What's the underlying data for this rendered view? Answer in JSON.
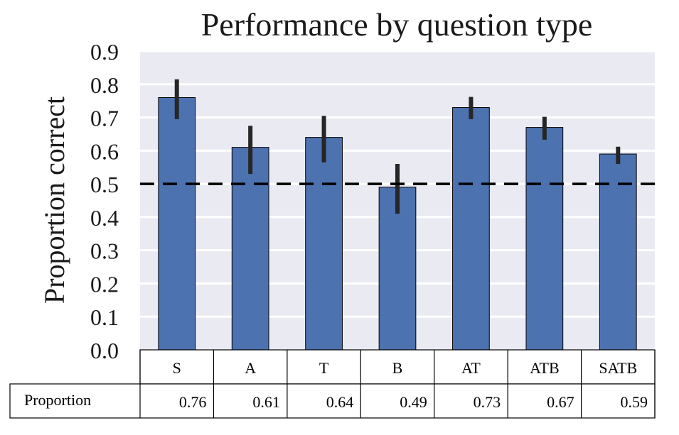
{
  "chart_data": {
    "type": "bar",
    "title": "Performance by question type",
    "ylabel": "Proportion correct",
    "xlabel": "",
    "categories": [
      "S",
      "A",
      "T",
      "B",
      "AT",
      "ATB",
      "SATB"
    ],
    "values": [
      0.76,
      0.61,
      0.64,
      0.49,
      0.73,
      0.67,
      0.59
    ],
    "error_low": [
      0.695,
      0.53,
      0.565,
      0.41,
      0.695,
      0.633,
      0.56
    ],
    "error_high": [
      0.815,
      0.675,
      0.705,
      0.56,
      0.762,
      0.702,
      0.612
    ],
    "ylim": [
      0,
      0.9
    ],
    "yticks": [
      "0.0",
      "0.1",
      "0.2",
      "0.3",
      "0.4",
      "0.5",
      "0.6",
      "0.7",
      "0.8",
      "0.9"
    ],
    "reference_line": 0.5,
    "grid": true,
    "colors": {
      "bar": "#4c72b0",
      "bar_edge": "#000000",
      "plot_bg": "#eaeaf2",
      "grid": "#ffffff",
      "error_bar": "#262626",
      "reference": "#000000"
    },
    "table": {
      "row_label": "Proportion",
      "values": [
        "0.76",
        "0.61",
        "0.64",
        "0.49",
        "0.73",
        "0.67",
        "0.59"
      ]
    }
  }
}
